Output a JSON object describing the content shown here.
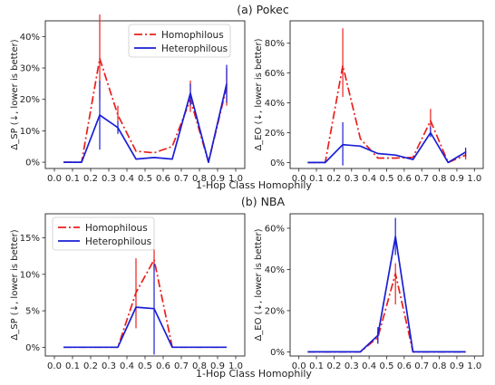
{
  "sections": [
    {
      "title": "(a) Pokec",
      "xlabel": "1-Hop Class Homophily"
    },
    {
      "title": "(b) NBA",
      "xlabel": "1-Hop Class Homophily"
    }
  ],
  "colors": {
    "homophilous": "#e8201c",
    "heterophilous": "#1a1fd6"
  },
  "chart_data": [
    {
      "type": "line",
      "title": "(a) Pokec",
      "xlabel": "1-Hop Class Homophily",
      "ylabel": "Δ_SP (↓, lower is better)",
      "x": [
        0.05,
        0.15,
        0.25,
        0.35,
        0.45,
        0.55,
        0.65,
        0.75,
        0.85,
        0.95
      ],
      "xticks": [
        "0.0",
        "0.1",
        "0.2",
        "0.3",
        "0.4",
        "0.5",
        "0.6",
        "0.7",
        "0.8",
        "0.9",
        "1.0"
      ],
      "yticks": [
        "0%",
        "10%",
        "20%",
        "30%",
        "40%"
      ],
      "ylim": [
        -2,
        45
      ],
      "legend": "top-left",
      "series": [
        {
          "name": "Homophilous",
          "style": "dashdot",
          "values": [
            0,
            0,
            33,
            15,
            3.5,
            3,
            5,
            20,
            0,
            24
          ],
          "err_low": [
            null,
            null,
            20,
            13,
            null,
            null,
            null,
            16,
            null,
            18
          ],
          "err_high": [
            null,
            null,
            47,
            18,
            null,
            null,
            null,
            26,
            null,
            30
          ]
        },
        {
          "name": "Heterophilous",
          "style": "solid",
          "values": [
            0,
            0,
            15,
            11,
            1,
            1.5,
            1,
            22,
            0,
            25
          ],
          "err_low": [
            null,
            null,
            4,
            9,
            null,
            null,
            null,
            18,
            null,
            19
          ],
          "err_high": [
            null,
            null,
            26,
            13,
            null,
            null,
            null,
            25,
            null,
            31
          ]
        }
      ]
    },
    {
      "type": "line",
      "title": "(a) Pokec",
      "xlabel": "1-Hop Class Homophily",
      "ylabel": "Δ_EO (↓, lower is better)",
      "x": [
        0.05,
        0.15,
        0.25,
        0.35,
        0.45,
        0.55,
        0.65,
        0.75,
        0.85,
        0.95
      ],
      "xticks": [
        "0.0",
        "0.1",
        "0.2",
        "0.3",
        "0.4",
        "0.5",
        "0.6",
        "0.7",
        "0.8",
        "0.9",
        "1.0"
      ],
      "yticks": [
        "0%",
        "20%",
        "40%",
        "60%",
        "80%"
      ],
      "ylim": [
        -4,
        95
      ],
      "series": [
        {
          "name": "Homophilous",
          "style": "dashdot",
          "values": [
            0,
            0,
            65,
            16,
            3,
            3,
            3.5,
            28,
            0,
            5
          ],
          "err_low": [
            null,
            null,
            44,
            null,
            null,
            null,
            null,
            19,
            null,
            2
          ],
          "err_high": [
            null,
            null,
            90,
            null,
            null,
            null,
            null,
            36,
            null,
            8
          ]
        },
        {
          "name": "Heterophilous",
          "style": "solid",
          "values": [
            0,
            0,
            12,
            11,
            6,
            5,
            2,
            20,
            0,
            7
          ],
          "err_low": [
            null,
            null,
            -2,
            null,
            null,
            null,
            null,
            17,
            null,
            4
          ],
          "err_high": [
            null,
            null,
            27,
            null,
            null,
            null,
            null,
            24,
            null,
            10
          ]
        }
      ]
    },
    {
      "type": "line",
      "title": "(b) NBA",
      "xlabel": "1-Hop Class Homophily",
      "ylabel": "Δ_SP (↓, lower is better)",
      "x": [
        0.05,
        0.15,
        0.25,
        0.35,
        0.45,
        0.55,
        0.65,
        0.75,
        0.85,
        0.95
      ],
      "xticks": [
        "0.0",
        "0.1",
        "0.2",
        "0.3",
        "0.4",
        "0.5",
        "0.6",
        "0.7",
        "0.8",
        "0.9",
        "1.0"
      ],
      "yticks": [
        "0%",
        "5%",
        "10%",
        "15%"
      ],
      "ylim": [
        -1.2,
        18.3
      ],
      "legend": "top-left",
      "series": [
        {
          "name": "Homophilous",
          "style": "dashdot",
          "values": [
            0,
            0,
            0,
            0,
            7.5,
            12,
            0,
            0,
            0,
            0
          ],
          "err_low": [
            null,
            null,
            null,
            null,
            2.6,
            10.5,
            null,
            null,
            null,
            null
          ],
          "err_high": [
            null,
            null,
            null,
            null,
            12.2,
            13.4,
            null,
            null,
            null,
            null
          ]
        },
        {
          "name": "Heterophilous",
          "style": "solid",
          "values": [
            0,
            0,
            0,
            0,
            5.5,
            5.3,
            0,
            0,
            0,
            0
          ],
          "err_low": [
            null,
            null,
            null,
            null,
            null,
            -1,
            null,
            null,
            null,
            null
          ],
          "err_high": [
            null,
            null,
            null,
            null,
            null,
            11.5,
            null,
            null,
            null,
            null
          ]
        }
      ]
    },
    {
      "type": "line",
      "title": "(b) NBA",
      "xlabel": "1-Hop Class Homophily",
      "ylabel": "Δ_EO (↓, lower is better)",
      "x": [
        0.05,
        0.15,
        0.25,
        0.35,
        0.45,
        0.55,
        0.65,
        0.75,
        0.85,
        0.95
      ],
      "xticks": [
        "0.0",
        "0.1",
        "0.2",
        "0.3",
        "0.4",
        "0.5",
        "0.6",
        "0.7",
        "0.8",
        "0.9",
        "1.0"
      ],
      "yticks": [
        "0%",
        "20%",
        "40%",
        "60%"
      ],
      "ylim": [
        -2,
        67
      ],
      "series": [
        {
          "name": "Homophilous",
          "style": "dashdot",
          "values": [
            0,
            0,
            0,
            0,
            7,
            38,
            0,
            0,
            0,
            0
          ],
          "err_low": [
            null,
            null,
            null,
            null,
            4,
            23,
            null,
            null,
            null,
            null
          ],
          "err_high": [
            null,
            null,
            null,
            null,
            10,
            43,
            null,
            null,
            null,
            null
          ]
        },
        {
          "name": "Heterophilous",
          "style": "solid",
          "values": [
            0,
            0,
            0,
            0,
            8,
            56,
            0,
            0,
            0,
            0
          ],
          "err_low": [
            null,
            null,
            null,
            null,
            4,
            47,
            null,
            null,
            null,
            null
          ],
          "err_high": [
            null,
            null,
            null,
            null,
            12,
            65,
            null,
            null,
            null,
            null
          ]
        }
      ]
    }
  ]
}
